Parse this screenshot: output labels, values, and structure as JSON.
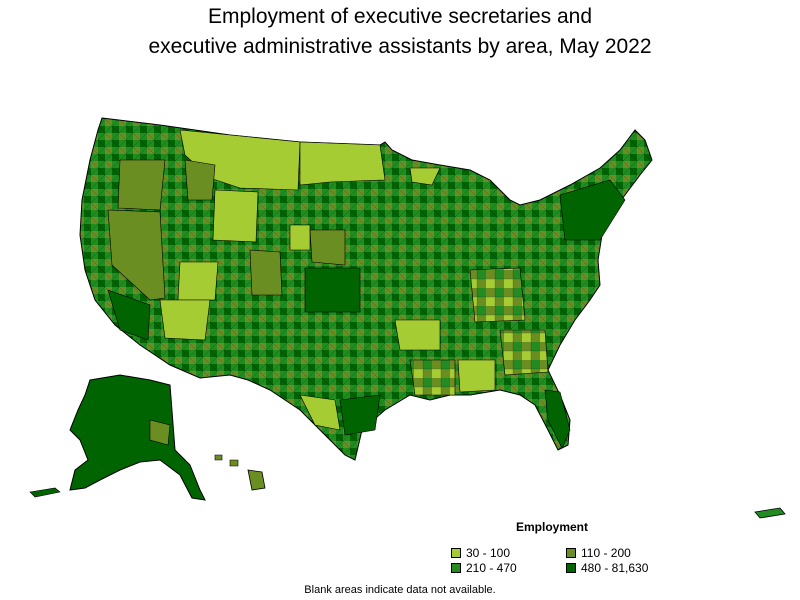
{
  "title_line1": "Employment of executive secretaries and",
  "title_line2": "executive administrative assistants by area, May 2022",
  "legend": {
    "title": "Employment",
    "items": [
      {
        "label": "30 - 100",
        "color": "#a6cc33"
      },
      {
        "label": "110 - 200",
        "color": "#6b8e23"
      },
      {
        "label": "210 - 470",
        "color": "#228b22"
      },
      {
        "label": "480 - 81,630",
        "color": "#006400"
      }
    ]
  },
  "footnote": "Blank areas indicate data not available."
}
